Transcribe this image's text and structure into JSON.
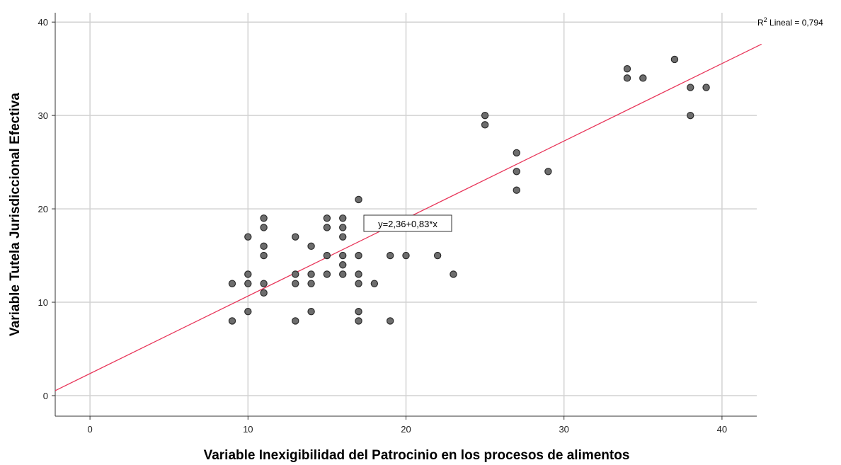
{
  "chart_data": {
    "type": "scatter",
    "title": "",
    "xlabel": "Variable Inexigibilidad del Patrocinio en los procesos de alimentos",
    "ylabel": "Variable Tutela Jurisdiccional Efectiva",
    "xlim": [
      -2.2,
      42.2
    ],
    "ylim": [
      -2.2,
      41.0
    ],
    "xticks": [
      0,
      10,
      20,
      30,
      40
    ],
    "yticks": [
      0,
      10,
      20,
      30,
      40
    ],
    "grid": true,
    "fit_line": {
      "intercept": 2.36,
      "slope": 0.83,
      "color": "#e8365a",
      "equation_label": "y=2,36+0,83*x"
    },
    "r2_label": {
      "prefix": "R",
      "sup": "2",
      "text": " Lineal = 0,794"
    },
    "marker_color": "#6d6d6d",
    "points": [
      [
        9,
        12
      ],
      [
        9,
        8
      ],
      [
        10,
        17
      ],
      [
        10,
        13
      ],
      [
        10,
        12
      ],
      [
        10,
        9
      ],
      [
        11,
        19
      ],
      [
        11,
        18
      ],
      [
        11,
        16
      ],
      [
        11,
        15
      ],
      [
        11,
        12
      ],
      [
        11,
        11
      ],
      [
        13,
        17
      ],
      [
        13,
        13
      ],
      [
        13,
        12
      ],
      [
        13,
        8
      ],
      [
        14,
        16
      ],
      [
        14,
        13
      ],
      [
        14,
        12
      ],
      [
        14,
        9
      ],
      [
        15,
        19
      ],
      [
        15,
        18
      ],
      [
        15,
        15
      ],
      [
        15,
        13
      ],
      [
        16,
        19
      ],
      [
        16,
        18
      ],
      [
        16,
        17
      ],
      [
        16,
        15
      ],
      [
        16,
        14
      ],
      [
        16,
        13
      ],
      [
        17,
        21
      ],
      [
        17,
        15
      ],
      [
        17,
        13
      ],
      [
        17,
        12
      ],
      [
        17,
        9
      ],
      [
        17,
        8
      ],
      [
        18,
        12
      ],
      [
        19,
        15
      ],
      [
        19,
        8
      ],
      [
        20,
        15
      ],
      [
        22,
        18
      ],
      [
        22,
        15
      ],
      [
        23,
        13
      ],
      [
        25,
        30
      ],
      [
        25,
        29
      ],
      [
        27,
        26
      ],
      [
        27,
        24
      ],
      [
        27,
        22
      ],
      [
        29,
        24
      ],
      [
        34,
        35
      ],
      [
        34,
        34
      ],
      [
        35,
        34
      ],
      [
        37,
        36
      ],
      [
        38,
        33
      ],
      [
        38,
        30
      ],
      [
        39,
        33
      ]
    ]
  }
}
